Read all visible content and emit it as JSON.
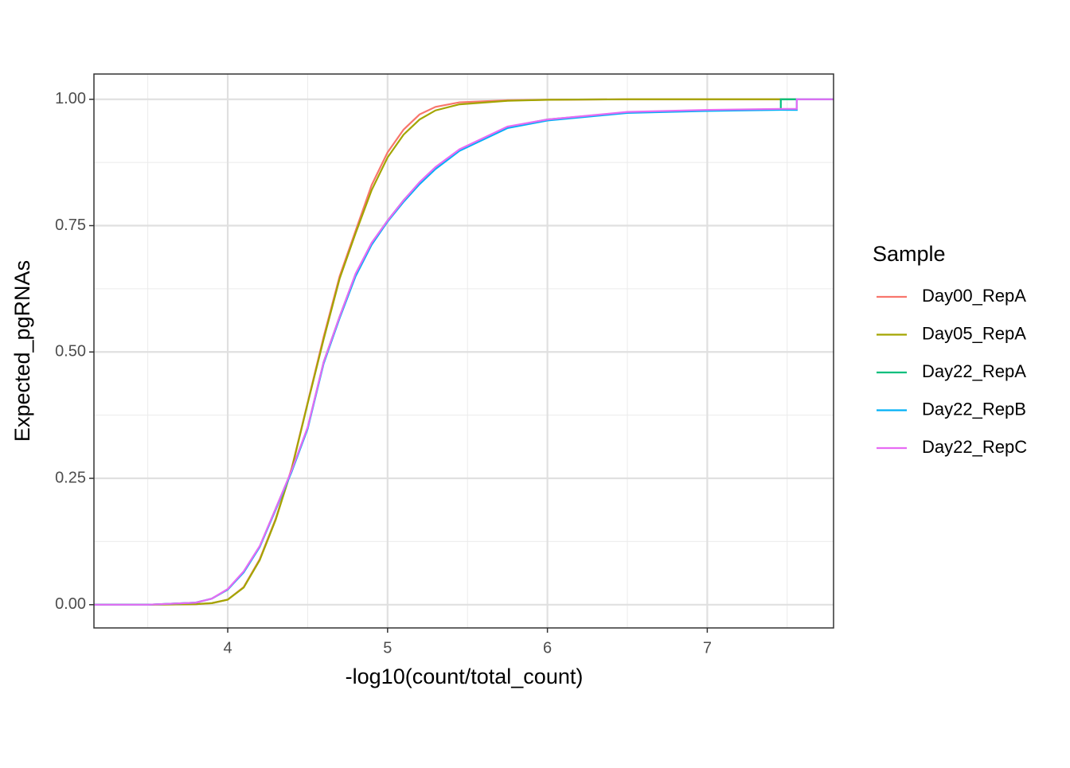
{
  "chart_data": {
    "type": "line",
    "xlabel": "-log10(count/total_count)",
    "ylabel": "Expected_pgRNAs",
    "legend_title": "Sample",
    "legend": "right",
    "grid": true,
    "xlim": [
      3.163,
      7.79
    ],
    "ylim": [
      -0.046,
      1.05
    ],
    "xticks": [
      4,
      5,
      6,
      7
    ],
    "yticks": [
      {
        "value": 0,
        "label": "0.00"
      },
      {
        "value": 0.25,
        "label": "0.25"
      },
      {
        "value": 0.5,
        "label": "0.50"
      },
      {
        "value": 0.75,
        "label": "0.75"
      },
      {
        "value": 1,
        "label": "1.00"
      }
    ],
    "x_minor_ticks": [
      3.5,
      4.5,
      5.5,
      6.5,
      7.5
    ],
    "y_minor_ticks": [
      0.125,
      0.375,
      0.625,
      0.875
    ],
    "x": [
      3.163,
      3.5,
      3.8,
      3.9,
      4.0,
      4.1,
      4.2,
      4.3,
      4.4,
      4.5,
      4.6,
      4.7,
      4.8,
      4.9,
      5.0,
      5.1,
      5.2,
      5.3,
      5.45,
      5.75,
      6.0,
      6.5,
      7.0,
      7.46,
      7.46,
      7.56,
      7.56,
      7.79
    ],
    "series": [
      {
        "name": "Day00_RepA",
        "color": "#F8766D",
        "values": [
          0,
          0,
          0.001,
          0.003,
          0.01,
          0.035,
          0.09,
          0.17,
          0.27,
          0.4,
          0.53,
          0.65,
          0.74,
          0.83,
          0.895,
          0.94,
          0.97,
          0.985,
          0.994,
          0.998,
          0.999,
          1,
          1,
          1,
          1,
          1,
          1,
          1
        ]
      },
      {
        "name": "Day05_RepA",
        "color": "#A3A500",
        "values": [
          0,
          0,
          0.001,
          0.003,
          0.01,
          0.034,
          0.088,
          0.168,
          0.268,
          0.398,
          0.525,
          0.645,
          0.735,
          0.82,
          0.885,
          0.93,
          0.96,
          0.978,
          0.99,
          0.997,
          0.999,
          1,
          1,
          1,
          1,
          1,
          1,
          1
        ]
      },
      {
        "name": "Day22_RepA",
        "color": "#00BF7D",
        "values": [
          0,
          0,
          0.004,
          0.012,
          0.03,
          0.065,
          0.115,
          0.19,
          0.265,
          0.35,
          0.48,
          0.57,
          0.654,
          0.715,
          0.76,
          0.8,
          0.835,
          0.865,
          0.9,
          0.945,
          0.96,
          0.974,
          0.978,
          0.98,
          1,
          1,
          1,
          1
        ]
      },
      {
        "name": "Day22_RepB",
        "color": "#00B0F6",
        "values": [
          0,
          0,
          0.004,
          0.012,
          0.03,
          0.064,
          0.114,
          0.188,
          0.263,
          0.348,
          0.477,
          0.567,
          0.65,
          0.712,
          0.758,
          0.797,
          0.832,
          0.862,
          0.898,
          0.943,
          0.958,
          0.973,
          0.977,
          0.979,
          0.979,
          0.979,
          1,
          1
        ]
      },
      {
        "name": "Day22_RepC",
        "color": "#E76BF3",
        "values": [
          0,
          0,
          0.004,
          0.012,
          0.031,
          0.066,
          0.116,
          0.19,
          0.266,
          0.351,
          0.48,
          0.57,
          0.655,
          0.716,
          0.76,
          0.8,
          0.836,
          0.866,
          0.901,
          0.946,
          0.96,
          0.975,
          0.979,
          0.981,
          0.981,
          0.981,
          1,
          1
        ]
      }
    ]
  }
}
